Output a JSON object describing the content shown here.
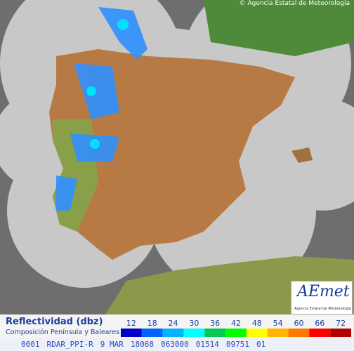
{
  "copyright": "© Agencia Estatal de Meteorología",
  "logo": {
    "text": "AEmet",
    "subtext": "Agencia Estatal de Meteorología"
  },
  "legend": {
    "title": "Reflectividad (dbz)",
    "subtitle": "Composición Península y Baleares",
    "values": [
      12,
      18,
      24,
      30,
      36,
      42,
      48,
      54,
      60,
      66,
      72
    ],
    "colors": [
      "#0000c8",
      "#0064ff",
      "#00b4ff",
      "#00ffff",
      "#00c850",
      "#00ff00",
      "#ffff00",
      "#ffb400",
      "#ff7800",
      "#ff0000",
      "#b40000"
    ]
  },
  "footer": [
    "0001",
    "RDAR_PPI-R",
    "9 MAR",
    "18068",
    "063000",
    "01514",
    "09751",
    "01"
  ]
}
